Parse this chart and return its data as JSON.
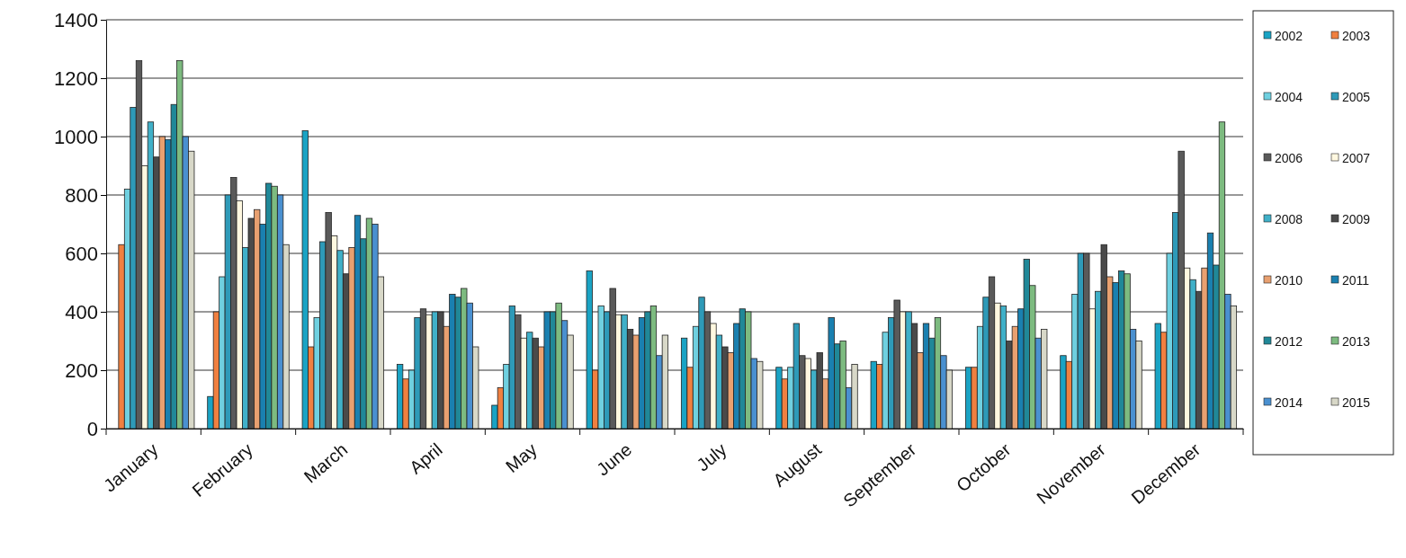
{
  "chart_data": {
    "type": "bar",
    "categories": [
      "January",
      "February",
      "March",
      "April",
      "May",
      "June",
      "July",
      "August",
      "September",
      "October",
      "November",
      "December"
    ],
    "series": [
      {
        "name": "2002",
        "color": "#1aa3c4",
        "values": [
          null,
          110,
          1020,
          220,
          80,
          540,
          310,
          210,
          230,
          210,
          250,
          360
        ]
      },
      {
        "name": "2003",
        "color": "#f08040",
        "values": [
          630,
          400,
          280,
          170,
          140,
          200,
          210,
          170,
          220,
          210,
          230,
          330
        ]
      },
      {
        "name": "2004",
        "color": "#6fd0e0",
        "values": [
          820,
          520,
          380,
          200,
          220,
          420,
          350,
          210,
          330,
          350,
          460,
          600
        ]
      },
      {
        "name": "2005",
        "color": "#2e9ab8",
        "values": [
          1100,
          800,
          640,
          380,
          420,
          400,
          450,
          360,
          380,
          450,
          600,
          740
        ]
      },
      {
        "name": "2006",
        "color": "#5a5a5a",
        "values": [
          1260,
          860,
          740,
          410,
          390,
          480,
          400,
          250,
          440,
          520,
          600,
          950
        ]
      },
      {
        "name": "2007",
        "color": "#fff8e0",
        "values": [
          900,
          780,
          660,
          390,
          310,
          390,
          360,
          240,
          400,
          430,
          410,
          550
        ]
      },
      {
        "name": "2008",
        "color": "#40b0c8",
        "values": [
          1050,
          620,
          610,
          400,
          330,
          390,
          320,
          200,
          400,
          420,
          470,
          510
        ]
      },
      {
        "name": "2009",
        "color": "#4a4a4a",
        "values": [
          930,
          720,
          530,
          400,
          310,
          340,
          280,
          260,
          360,
          300,
          630,
          470
        ]
      },
      {
        "name": "2010",
        "color": "#e8a070",
        "values": [
          1000,
          750,
          620,
          350,
          280,
          320,
          260,
          170,
          260,
          350,
          520,
          550
        ]
      },
      {
        "name": "2011",
        "color": "#1a80b0",
        "values": [
          990,
          700,
          730,
          460,
          400,
          380,
          360,
          380,
          360,
          410,
          500,
          670
        ]
      },
      {
        "name": "2012",
        "color": "#208898",
        "values": [
          1110,
          840,
          650,
          450,
          400,
          400,
          410,
          290,
          310,
          580,
          540,
          560
        ]
      },
      {
        "name": "2013",
        "color": "#7dbb80",
        "values": [
          1260,
          830,
          720,
          480,
          430,
          420,
          400,
          300,
          380,
          490,
          530,
          1050
        ]
      },
      {
        "name": "2014",
        "color": "#4a90d0",
        "values": [
          1000,
          800,
          700,
          430,
          370,
          250,
          240,
          140,
          250,
          310,
          340,
          460
        ]
      },
      {
        "name": "2015",
        "color": "#d8d8c8",
        "values": [
          950,
          630,
          520,
          280,
          320,
          320,
          230,
          220,
          200,
          340,
          300,
          420
        ]
      }
    ],
    "ylim": [
      0,
      1400
    ],
    "yticks": [
      0,
      200,
      400,
      600,
      800,
      1000,
      1200,
      1400
    ],
    "grid": "y",
    "legend": "right"
  }
}
